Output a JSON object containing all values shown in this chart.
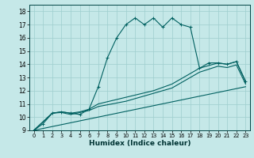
{
  "xlabel": "Humidex (Indice chaleur)",
  "xlim": [
    -0.5,
    23.5
  ],
  "ylim": [
    9,
    18.5
  ],
  "xticks": [
    0,
    1,
    2,
    3,
    4,
    5,
    6,
    7,
    8,
    9,
    10,
    11,
    12,
    13,
    14,
    15,
    16,
    17,
    18,
    19,
    20,
    21,
    22,
    23
  ],
  "yticks": [
    9,
    10,
    11,
    12,
    13,
    14,
    15,
    16,
    17,
    18
  ],
  "bg_color": "#c5e8e8",
  "line_color": "#006060",
  "grid_color": "#9ecece",
  "line1_x": [
    0,
    1,
    2,
    3,
    4,
    5,
    6,
    7,
    8,
    9,
    10,
    11,
    12,
    13,
    14,
    15,
    16,
    17,
    18,
    19,
    20,
    21,
    22,
    23
  ],
  "line1_y": [
    9.0,
    9.5,
    10.3,
    10.4,
    10.3,
    10.2,
    10.6,
    12.3,
    14.5,
    16.0,
    17.0,
    17.5,
    17.0,
    17.5,
    16.8,
    17.5,
    17.0,
    16.8,
    13.7,
    14.1,
    14.1,
    14.0,
    14.2,
    12.7
  ],
  "line2_x": [
    0,
    2,
    3,
    4,
    5,
    6,
    7,
    10,
    13,
    15,
    18,
    20,
    21,
    22,
    23
  ],
  "line2_y": [
    9.0,
    10.3,
    10.4,
    10.3,
    10.4,
    10.6,
    11.0,
    11.5,
    12.0,
    12.5,
    13.7,
    14.1,
    14.0,
    14.2,
    12.7
  ],
  "line3_x": [
    0,
    2,
    3,
    4,
    5,
    6,
    7,
    10,
    13,
    15,
    18,
    20,
    21,
    22,
    23
  ],
  "line3_y": [
    9.0,
    10.3,
    10.35,
    10.2,
    10.35,
    10.5,
    10.8,
    11.2,
    11.8,
    12.2,
    13.4,
    13.85,
    13.75,
    13.95,
    12.5
  ],
  "line4_x": [
    0,
    23
  ],
  "line4_y": [
    9.0,
    12.3
  ]
}
